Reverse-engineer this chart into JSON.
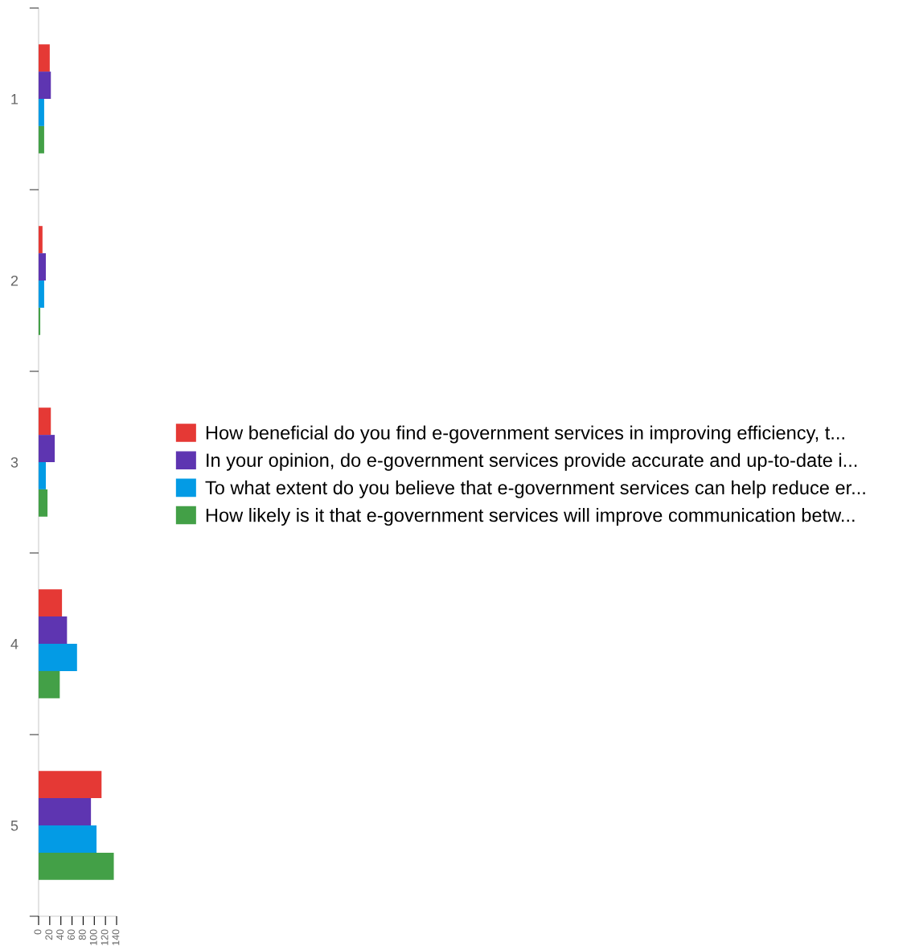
{
  "chart_data": {
    "type": "bar",
    "orientation": "horizontal",
    "categories": [
      "1",
      "2",
      "3",
      "4",
      "5"
    ],
    "series": [
      {
        "name": "How beneficial do you find e-government services in improving efficiency, t...",
        "color": "#e53935",
        "values": [
          20,
          7,
          22,
          42,
          113
        ]
      },
      {
        "name": "In your opinion, do e-government services provide accurate and up-to-date i...",
        "color": "#5e35b1",
        "values": [
          22,
          13,
          29,
          51,
          94
        ]
      },
      {
        "name": "To what extent do you believe that e-government services can help reduce er...",
        "color": "#039be5",
        "values": [
          10,
          10,
          13,
          69,
          104
        ]
      },
      {
        "name": "How likely is it that e-government services will improve communication betw...",
        "color": "#43a047",
        "values": [
          10,
          3,
          16,
          38,
          135
        ]
      }
    ],
    "xlim": [
      0,
      140
    ],
    "xticks": [
      0,
      20,
      40,
      60,
      80,
      100,
      120,
      140
    ],
    "grid": false,
    "legend": "right"
  }
}
